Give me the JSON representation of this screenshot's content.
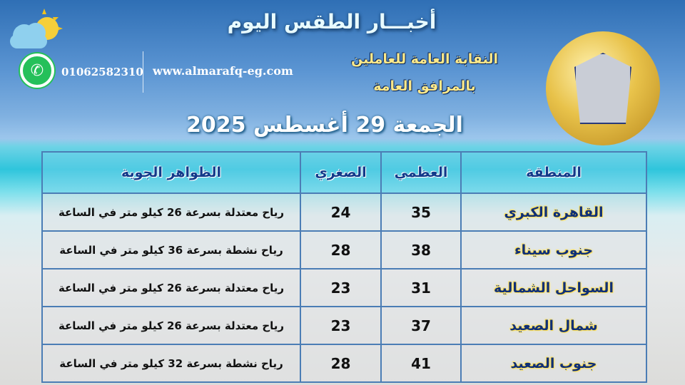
{
  "header": {
    "title": "أخبـــار الطقس اليوم",
    "phone": "01062582310",
    "website": "www.almarafq-eg.com",
    "organization_line1": "النقابة العامة للعاملين",
    "organization_line2": "بالمرافق العامة",
    "date": "الجمعة 29 أغسطس 2025"
  },
  "icons": {
    "weather": "cloud-sun-icon",
    "contact": "whatsapp-icon",
    "logo": "union-emblem"
  },
  "table": {
    "headers": [
      "المنطقة",
      "العظمي",
      "الصغري",
      "الظواهر الجوية"
    ],
    "rows": [
      {
        "region": "القاهرة الكبري",
        "max": "35",
        "min": "24",
        "phenomena": "رياح معتدلة بسرعة 26 كيلو متر في الساعة"
      },
      {
        "region": "جنوب سيناء",
        "max": "38",
        "min": "28",
        "phenomena": "رياح نشطة بسرعة 36 كيلو متر في الساعة"
      },
      {
        "region": "السواحل الشمالية",
        "max": "31",
        "min": "23",
        "phenomena": "رياح معتدلة بسرعة 26 كيلو متر في الساعة"
      },
      {
        "region": "شمال الصعيد",
        "max": "37",
        "min": "23",
        "phenomena": "رياح معتدلة بسرعة 26 كيلو متر في الساعة"
      },
      {
        "region": "جنوب الصعيد",
        "max": "41",
        "min": "28",
        "phenomena": "رياح نشطة بسرعة 32 كيلو متر في الساعة"
      }
    ]
  }
}
